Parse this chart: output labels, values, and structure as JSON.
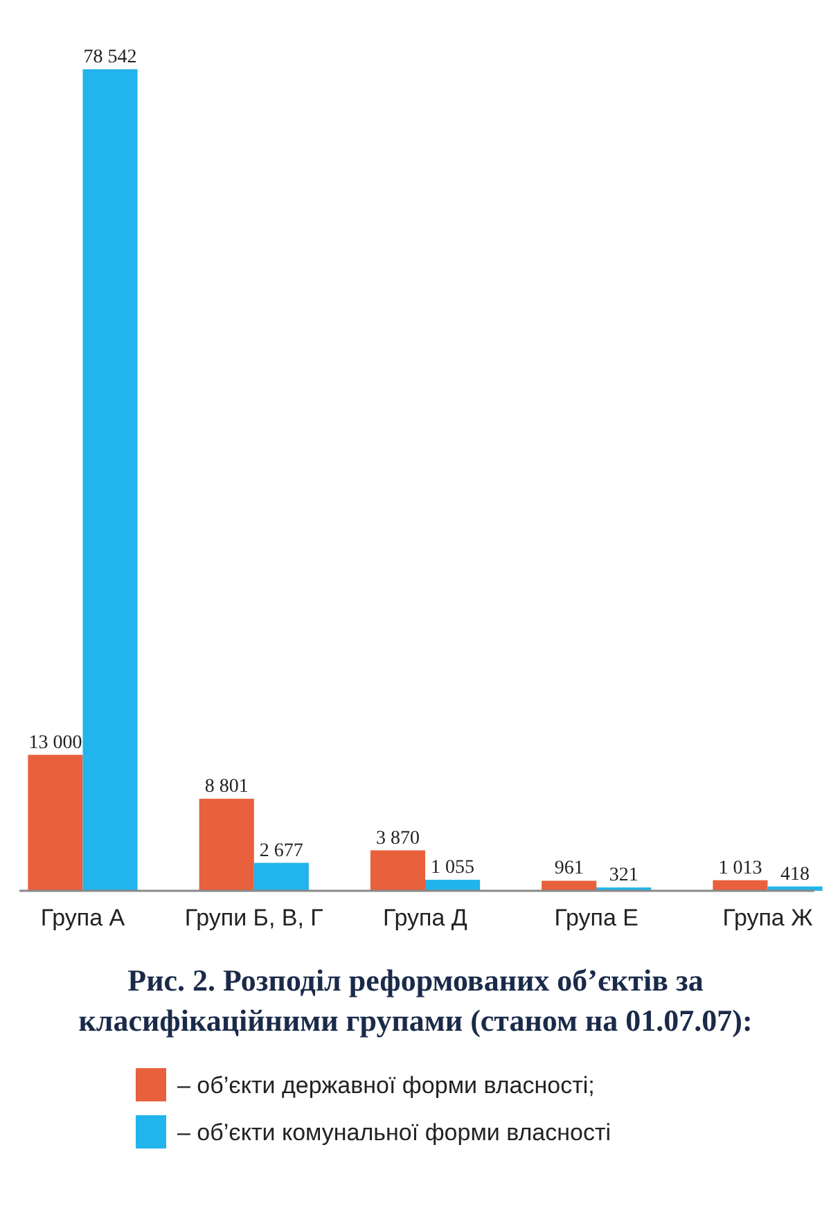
{
  "chart_data": {
    "type": "bar",
    "title": "Рис. 2. Розподіл реформованих об’єктів за класифікаційними групами (станом на 01.07.07):",
    "categories": [
      "Група А",
      "Групи Б, В, Г",
      "Група Д",
      "Група Е",
      "Група Ж"
    ],
    "series": [
      {
        "name": "– об’єкти державної форми власності;",
        "color": "#e8603c",
        "values": [
          13000,
          8801,
          3870,
          961,
          1013
        ]
      },
      {
        "name": "– об’єкти комунальної форми власності",
        "color": "#22b4ec",
        "values": [
          78542,
          2677,
          1055,
          321,
          418
        ]
      }
    ],
    "data_labels": true,
    "legend": "bottom",
    "grid": false
  }
}
